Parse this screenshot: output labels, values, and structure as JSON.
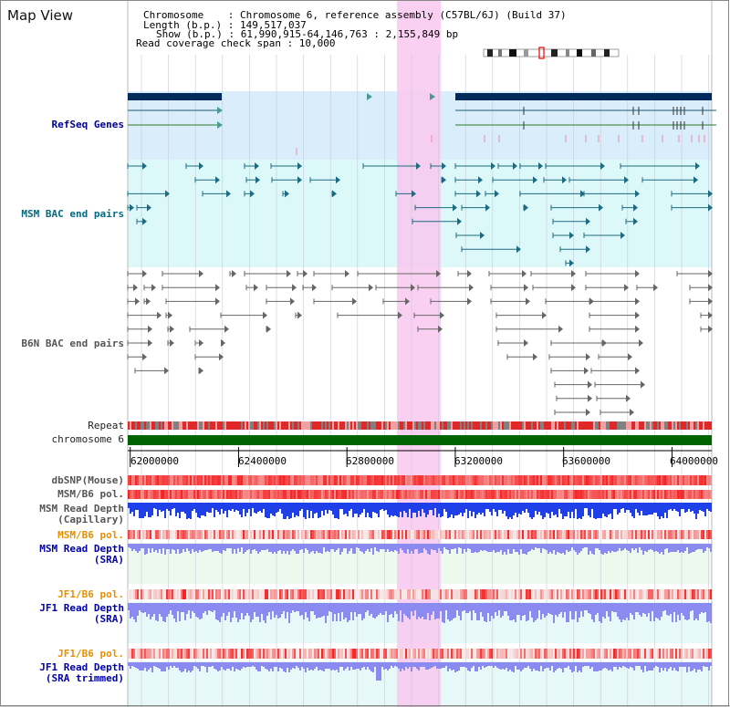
{
  "title": "Map View",
  "info": {
    "chromosome": "Chromosome    : Chromosome 6, reference assembly (C57BL/6J) (Build 37)",
    "length": "Length (b.p.) : 149,517,037",
    "show": "Show (b.p.) : 61,990,915-64,146,763 : 2,155,849 bp",
    "coverage": "Read coverage check span : 10,000"
  },
  "tracks": {
    "refseq": "RefSeq Genes",
    "msm_bac": "MSM BAC end pairs",
    "b6n_bac": "B6N BAC end pairs",
    "repeat": "Repeat",
    "chromosome": "chromosome 6",
    "dbsnp": "dbSNP(Mouse)",
    "msm_b6_pol": "MSM/B6 pol.",
    "msm_read_depth_cap": "MSM Read Depth\n(Capillary)",
    "msm_b6_pol_sra": "MSM/B6 pol.",
    "msm_read_depth_sra": "MSM Read Depth\n(SRA)",
    "jf1_b6_pol": "JF1/B6 pol.",
    "jf1_read_depth_sra": "JF1 Read Depth\n(SRA)",
    "jf1_b6_pol_trim": "JF1/B6 pol.",
    "jf1_read_depth_trim": "JF1 Read Depth\n(SRA trimmed)"
  },
  "axis": {
    "ticks": [
      "62000000",
      "62400000",
      "62800000",
      "63200000",
      "63600000",
      "64000000"
    ],
    "range": [
      61990915,
      64146763
    ]
  },
  "colors": {
    "highlight": "#f9c8f0",
    "refseq_bg": "#d9eefa",
    "bac_bg": "#dcf8f8",
    "gene": "#002a5c",
    "msm": "#1d6b80",
    "b6n": "#666666",
    "chromosome_bar": "#006400",
    "snp": "#f07070",
    "depth_cap": "#1f3fe8",
    "depth_sra": "#8a8af0"
  }
}
